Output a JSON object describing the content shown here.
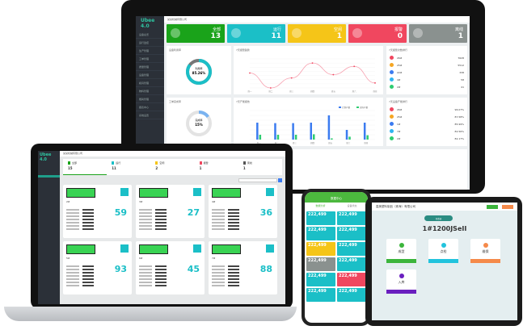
{
  "colors": {
    "green": "#1aa31a",
    "teal": "#1bbfc7",
    "yellow": "#f5c518",
    "red": "#f0475f",
    "gray": "#8a918f",
    "dark": "#2b3038"
  },
  "monitor": {
    "logo": "Ubee 4.0",
    "company": "某某机械有限公司",
    "sidebar": [
      "设备总览",
      "运行监控",
      "生产管理",
      "工单管理",
      "质量管理",
      "设备管理",
      "模具管理",
      "物料管理",
      "能耗管理",
      "报表中心",
      "系统设置"
    ],
    "status_cards": [
      {
        "label": "全部",
        "value": "13",
        "color": "#1aa31a"
      },
      {
        "label": "运行",
        "value": "11",
        "color": "#1bbfc7"
      },
      {
        "label": "空闲",
        "value": "1",
        "color": "#f5c518"
      },
      {
        "label": "报警",
        "value": "0",
        "color": "#f0475f"
      },
      {
        "label": "离线",
        "value": "1",
        "color": "#8a918f"
      }
    ],
    "util_panel": {
      "title": "设备利用率",
      "center_label": "利用率",
      "center_value": "85.26%",
      "fraction": 0.8526
    },
    "order_panel": {
      "title": "工单完成率",
      "center_label": "完成率",
      "center_value": "15%",
      "fraction": 0.15
    },
    "line_panel": {
      "title": "7天报警趋势"
    },
    "bar_panel": {
      "title": "7天产能报告",
      "legend": [
        "计划产量",
        "实际产量"
      ]
    },
    "rank1": {
      "title": "7天报警次数排行",
      "items": [
        {
          "name": "26#",
          "value": "7628",
          "color": "#f0475f"
        },
        {
          "name": "25#",
          "value": "5512",
          "color": "#f5a623"
        },
        {
          "name": "22#",
          "value": "338",
          "color": "#3b7bf0"
        },
        {
          "name": "4#",
          "value": "58",
          "color": "#2fb4f0"
        },
        {
          "name": "2#",
          "value": "41",
          "color": "#2ecc71"
        }
      ]
    },
    "rank2": {
      "title": "7天设备产能排行",
      "items": [
        {
          "name": "26#",
          "value": "96.07%",
          "color": "#f0475f"
        },
        {
          "name": "25#",
          "value": "87.58%",
          "color": "#f5a623"
        },
        {
          "name": "1#",
          "value": "85.99%",
          "color": "#3b7bf0"
        },
        {
          "name": "7#",
          "value": "82.56%",
          "color": "#2fb4f0"
        },
        {
          "name": "2#",
          "value": "82.17%",
          "color": "#2ecc71"
        }
      ]
    }
  },
  "chart_data": [
    {
      "type": "line",
      "categories": [
        "周一",
        "周二",
        "周三",
        "周四",
        "周五",
        "周六",
        "周日"
      ],
      "values": [
        1800,
        0,
        1200,
        3000,
        1600,
        2600,
        600
      ],
      "ylim": [
        0,
        3500
      ]
    },
    {
      "type": "bar",
      "categories": [
        "周一",
        "周二",
        "周三",
        "周四",
        "周五",
        "周六",
        "周日"
      ],
      "series": [
        {
          "name": "计划产量",
          "values": [
            70000,
            68000,
            68000,
            70000,
            100000,
            40000,
            70000
          ],
          "color": "#3b7bf0"
        },
        {
          "name": "实际产量",
          "values": [
            20000,
            20000,
            20000,
            22000,
            5000,
            12000,
            18000
          ],
          "color": "#2ecc71"
        }
      ],
      "ylim": [
        0,
        120000
      ]
    }
  ],
  "laptop": {
    "logo": "Ubee 4.0",
    "company": "某某机械有限公司",
    "stats": [
      {
        "label": "全部",
        "value": "15"
      },
      {
        "label": "运行",
        "value": "11"
      },
      {
        "label": "空闲",
        "value": "2"
      },
      {
        "label": "报警",
        "value": "1"
      },
      {
        "label": "离线",
        "value": "1"
      }
    ],
    "cards": [
      {
        "name": "2#",
        "pct": "59"
      },
      {
        "name": "3#",
        "pct": "27"
      },
      {
        "name": "4#",
        "pct": "36"
      },
      {
        "name": "5#",
        "pct": "93"
      },
      {
        "name": "6#",
        "pct": "45"
      },
      {
        "name": "7#",
        "pct": "88"
      }
    ]
  },
  "phone": {
    "title": "数据中心",
    "tabs": [
      "数据分析",
      "设备状态"
    ],
    "tile_value": "222,499",
    "tiles": [
      "#1bbfc7",
      "#1bbfc7",
      "#1bbfc7",
      "#1bbfc7",
      "#f5c518",
      "#1bbfc7",
      "#8a918f",
      "#1bbfc7",
      "#1bbfc7",
      "#f0475f",
      "#1bbfc7",
      "#1bbfc7"
    ]
  },
  "tablet": {
    "company": "嘉美塑料制品（珠海）有限公司",
    "pill": "已登录",
    "model": "1#1200JSeII",
    "cards": [
      {
        "label": "成型",
        "color": "#3cb53c"
      },
      {
        "label": "点检",
        "color": "#22c3dd"
      },
      {
        "label": "维保",
        "color": "#f58a4a"
      },
      {
        "label": "入库",
        "color": "#6a1fbf"
      }
    ]
  }
}
